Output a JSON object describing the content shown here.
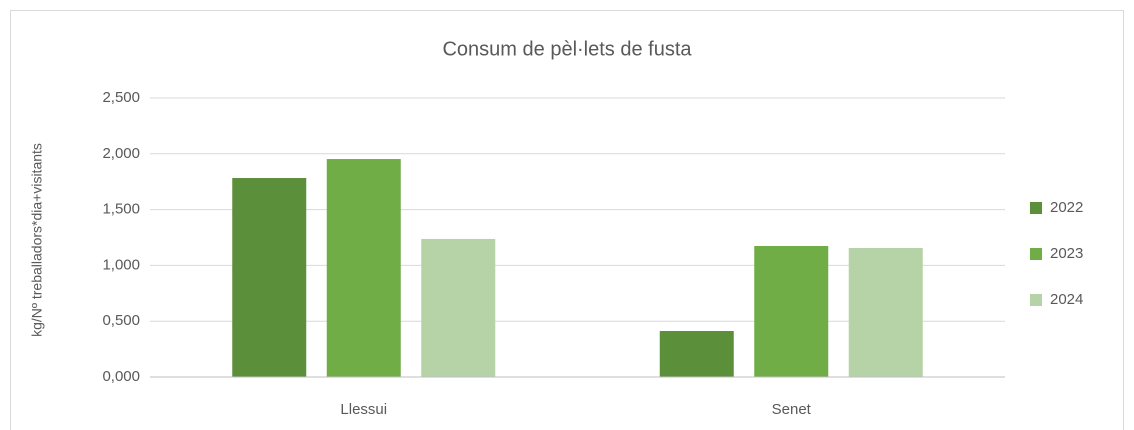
{
  "chart_data": {
    "type": "bar",
    "title": "Consum de pèl·lets de fusta",
    "y_label": "kg/Nº treballadors*dia+visitants",
    "categories": [
      "Llessui",
      "Senet"
    ],
    "series": [
      {
        "name": "2022",
        "color": "#5b8f3a",
        "values": [
          1.783,
          0.412
        ]
      },
      {
        "name": "2023",
        "color": "#70ad47",
        "values": [
          1.953,
          1.174
        ]
      },
      {
        "name": "2024",
        "color": "#b5d3a6",
        "values": [
          1.237,
          1.156
        ]
      }
    ],
    "ylim": [
      0,
      2.5
    ],
    "yticks": [
      {
        "value": 0,
        "label": "0,000"
      },
      {
        "value": 0.5,
        "label": "0,500"
      },
      {
        "value": 1,
        "label": "1,000"
      },
      {
        "value": 1.5,
        "label": "1,500"
      },
      {
        "value": 2,
        "label": "2,000"
      },
      {
        "value": 2.5,
        "label": "2,500"
      }
    ],
    "grid": true,
    "legend": "right"
  }
}
